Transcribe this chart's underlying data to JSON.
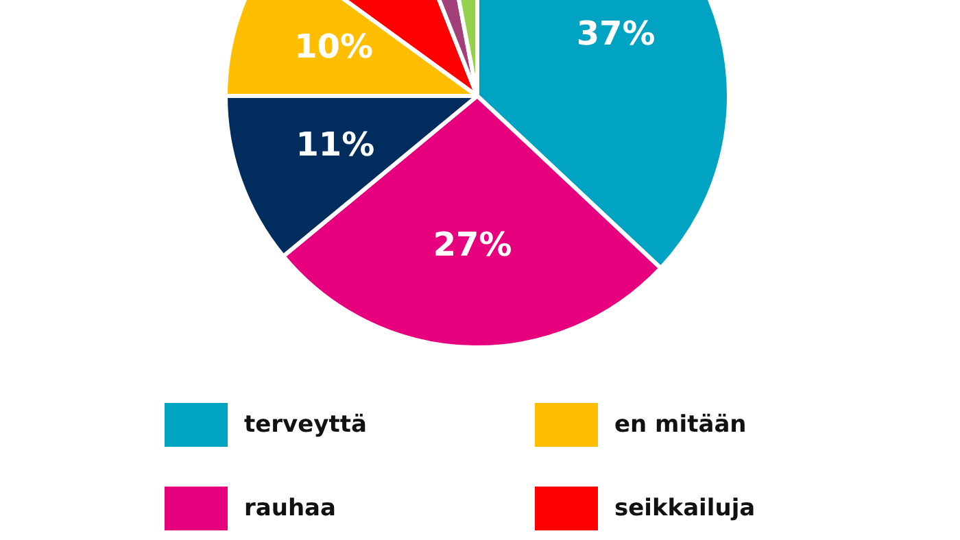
{
  "chart_data": {
    "type": "pie",
    "categories": [
      "terveyttä",
      "rauhaa",
      null,
      "en mitään",
      "seikkailuja",
      null,
      null
    ],
    "values": [
      37,
      27,
      11,
      10,
      9,
      3,
      3
    ],
    "colors": [
      "#00a3c1",
      "#e6007e",
      "#002d5e",
      "#ffbf00",
      "#ff0000",
      "#a3407a",
      "#96d14e"
    ],
    "value_labels": [
      "37%",
      "27%",
      "11%",
      "10%",
      null,
      null,
      null
    ],
    "legend": "bottom"
  }
}
